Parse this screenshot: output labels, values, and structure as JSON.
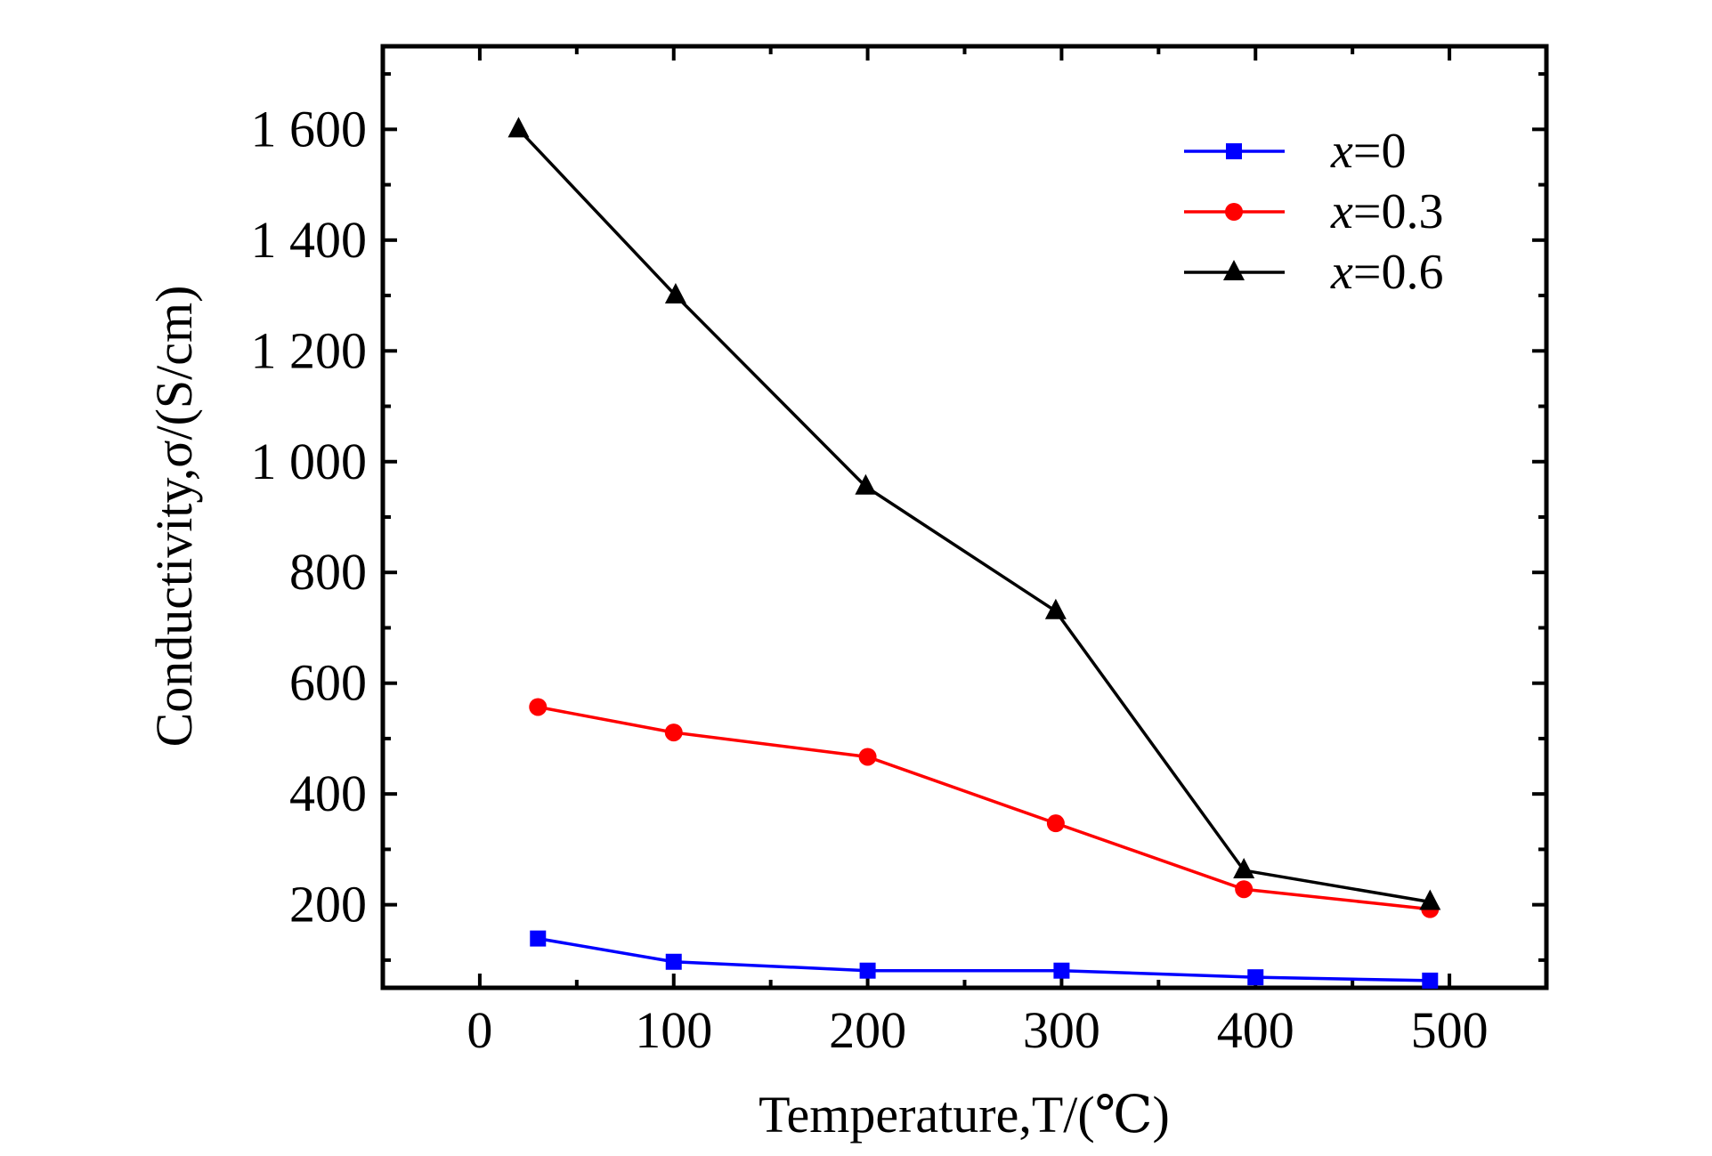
{
  "chart_data": {
    "type": "line",
    "title": "",
    "xlabel": "Temperature,T/(℃)",
    "ylabel": "Conductivity,σ/(S/cm)",
    "xlim": [
      -50,
      550
    ],
    "ylim": [
      50,
      1750
    ],
    "xticks": [
      0,
      100,
      200,
      300,
      400,
      500
    ],
    "xtick_labels": [
      "0",
      "100",
      "200",
      "300",
      "400",
      "500"
    ],
    "yticks": [
      200,
      400,
      600,
      800,
      1000,
      1200,
      1400,
      1600
    ],
    "ytick_labels": [
      "200",
      "400",
      "600",
      "800",
      "1 000",
      "1 200",
      "1 400",
      "1 600"
    ],
    "grid": false,
    "legend_position": "top-right",
    "series": [
      {
        "name": "x=0",
        "label_var": "x",
        "label_val": "=0",
        "color": "#0000ff",
        "marker": "square",
        "x": [
          30,
          100,
          200,
          300,
          400,
          490
        ],
        "y": [
          139,
          97,
          81,
          81,
          69,
          63
        ]
      },
      {
        "name": "x=0.3",
        "label_var": "x",
        "label_val": "=0.3",
        "color": "#ff0000",
        "marker": "circle",
        "x": [
          30,
          100,
          200,
          297,
          394,
          490
        ],
        "y": [
          557,
          511,
          467,
          347,
          228,
          192
        ]
      },
      {
        "name": "x=0.6",
        "label_var": "x",
        "label_val": "=0.6",
        "color": "#000000",
        "marker": "triangle",
        "x": [
          20,
          101,
          199,
          297,
          394,
          490
        ],
        "y": [
          1600,
          1300,
          955,
          730,
          262,
          205
        ]
      }
    ]
  }
}
